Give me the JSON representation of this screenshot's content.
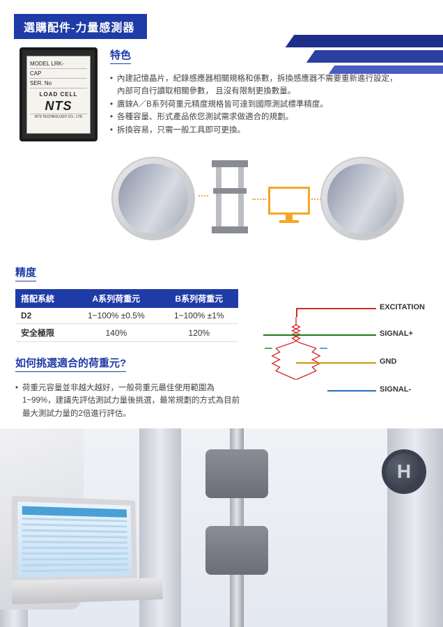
{
  "header": {
    "title": "選購配件-力量感測器"
  },
  "label": {
    "model": "MODEL  LRK-",
    "cap": "CAP",
    "ser": "SER. No",
    "loadcell": "LOAD CELL",
    "brand": "NTS",
    "tech": "NTS TECHNOLOGY CO., LTD"
  },
  "features": {
    "title": "特色",
    "items": [
      "內建記憶晶片，紀錄感應器相關規格和係數，拆換感應器不需要重新進行設定，",
      "內部可自行讀取相關參數，   且沒有限制更換數量。",
      "廣錸A／B系列荷重元精度規格皆可達到國際測試標準精度。",
      "各種容量、形式產品依您測試需求做適合的規劃。",
      "拆換容易，只需一般工具即可更換。"
    ]
  },
  "precision": {
    "title": "精度",
    "table": {
      "columns": [
        "搭配系統",
        "A系列荷重元",
        "B系列荷重元"
      ],
      "rows": [
        [
          "D2",
          "1~100% ±0.5%",
          "1~100% ±1%"
        ],
        [
          "安全極限",
          "140%",
          "120%"
        ]
      ]
    }
  },
  "howto": {
    "title": "如何挑選適合的荷重元?",
    "text": "荷重元容量並非越大越好，一般荷重元最佳使用範圍為1~99%，建議先評估測試力量後挑選，最常規劃的方式為目前最大測試力量的2倍進行評估。"
  },
  "wiring": {
    "labels": [
      "EXCITATION",
      "SIGNAL+",
      "GND",
      "SIGNAL-"
    ],
    "colors": [
      "#d62828",
      "#1a7a1a",
      "#c99a00",
      "#1e6fc0"
    ],
    "tops": [
      17,
      55,
      95,
      135
    ]
  },
  "plate_letter": "H"
}
